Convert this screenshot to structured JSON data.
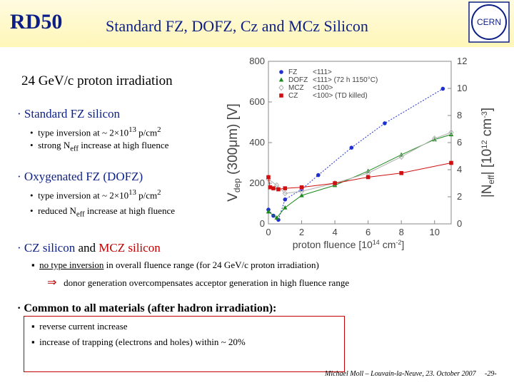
{
  "header": {
    "logo_text": "RD50",
    "title": "Standard FZ, DOFZ, Cz and MCz Silicon",
    "cern_logo_text": "CERN"
  },
  "subtitle": "24 GeV/c proton irradiation",
  "fz": {
    "heading": "Standard FZ silicon",
    "b1": "type inversion at ~ 2×10",
    "b1_exp": "13",
    "b1_tail": " p/cm",
    "b1_sq": "2",
    "b2_pre": "strong N",
    "b2_sub": "eff",
    "b2_post": " increase at high fluence"
  },
  "dofz": {
    "heading": "Oxygenated FZ (DOFZ)",
    "b1": "type inversion at ~ 2×10",
    "b1_exp": "13",
    "b1_tail": " p/cm",
    "b1_sq": "2",
    "b2_pre": "reduced N",
    "b2_sub": "eff",
    "b2_post": " increase at high fluence"
  },
  "cz": {
    "h1": "CZ silicon",
    "h_and": " and ",
    "h2": "MCZ silicon",
    "line1a": "no type inversion",
    "line1b": " in overall fluence range  (for 24 GeV/c proton irradiation)",
    "arrow": "⇒",
    "line2": "donor generation overcompensates acceptor generation in high fluence range"
  },
  "common": {
    "heading": "Common to all materials (after hadron irradiation):",
    "b1": "reverse current increase",
    "b2": "increase of trapping (electrons and holes) within ~ 20%"
  },
  "footer": {
    "text": "Michael Moll – Louvain-la-Neuve, 23. October 2007",
    "page": "-29-"
  },
  "colors": {
    "title": "#0b1f86",
    "fz": "#1f2fd0",
    "dofz": "#1a8a1a",
    "mcz": "#b0b0b0",
    "cz": "#d01010"
  },
  "chart_data": {
    "type": "scatter",
    "xlabel": "proton fluence [10",
    "xlabel_exp": "14",
    "xlabel_tail": " cm",
    "xlabel_sq": "-2",
    "xlabel_end": "]",
    "ylabel": "V",
    "ylabel_sub": "dep",
    "ylabel_tail": " (300μm) [V]",
    "y2label": "|N",
    "y2label_sub": "eff",
    "y2label_tail": "| [10",
    "y2label_exp": "12",
    "y2label_tail2": " cm",
    "y2label_sq": "-3",
    "y2label_end": "]",
    "xlim": [
      0,
      11
    ],
    "ylim": [
      0,
      800
    ],
    "y2lim": [
      0,
      12
    ],
    "xticks": [
      "0",
      "2",
      "4",
      "6",
      "8",
      "10"
    ],
    "yticks": [
      "0",
      "200",
      "400",
      "600",
      "800"
    ],
    "y2ticks": [
      "0",
      "2",
      "4",
      "6",
      "8",
      "10",
      "12"
    ],
    "legend": [
      "FZ",
      "DOFZ",
      "MCZ",
      "CZ"
    ],
    "legend_desc": [
      "<111>",
      "<111> (72 h 1150°C)",
      "<100>",
      "<100> (TD killed)"
    ],
    "series": [
      {
        "name": "FZ",
        "color": "#1f2fd0",
        "marker": "circle",
        "x": [
          0,
          0.3,
          0.6,
          1.0,
          2.0,
          3.0,
          5.0,
          7.0,
          10.5
        ],
        "y": [
          70,
          40,
          20,
          120,
          170,
          240,
          375,
          495,
          665
        ]
      },
      {
        "name": "DOFZ",
        "color": "#1a8a1a",
        "marker": "triangle",
        "x": [
          0,
          0.5,
          1.0,
          2.0,
          4.0,
          6.0,
          8.0,
          10.0,
          11.0
        ],
        "y": [
          60,
          30,
          80,
          140,
          190,
          260,
          340,
          415,
          440
        ]
      },
      {
        "name": "MCZ",
        "color": "#b0b0b0",
        "marker": "diamond",
        "x": [
          0,
          0.5,
          1.0,
          2.0,
          4.0,
          6.0,
          8.0,
          10.0,
          11.0
        ],
        "y": [
          220,
          190,
          150,
          160,
          200,
          250,
          330,
          420,
          450
        ]
      },
      {
        "name": "CZ",
        "color": "#d01010",
        "marker": "square",
        "x": [
          0,
          0.1,
          0.3,
          0.6,
          1.0,
          2.0,
          4.0,
          6.0,
          8.0,
          11.0
        ],
        "y": [
          230,
          180,
          175,
          170,
          175,
          180,
          200,
          230,
          250,
          300
        ]
      }
    ]
  }
}
